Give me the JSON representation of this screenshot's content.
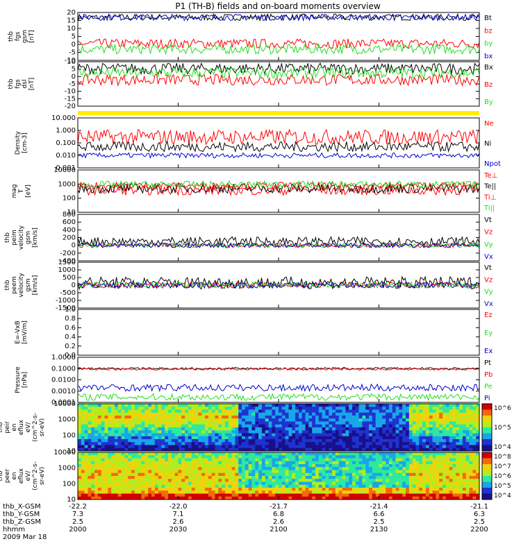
{
  "title": "P1 (TH-B) fields and on-board moments overview",
  "colors": {
    "black": "#000000",
    "red": "#ff0000",
    "green": "#22dd22",
    "blue": "#0000cc",
    "yellow": "#ffee00"
  },
  "chart_data": [
    {
      "type": "line",
      "panel": "fgs",
      "ylabel_lines": [
        "thb",
        "fgs",
        "gsm",
        "[nT]"
      ],
      "yticks": [
        "20",
        "15",
        "10",
        "5",
        "0",
        "-5",
        "-10"
      ],
      "ylim": [
        -10,
        20
      ],
      "series": [
        {
          "name": "Bt",
          "color": "#000000",
          "level": 17,
          "noise": 1.0
        },
        {
          "name": "bz",
          "color": "#ff0000",
          "level": 0.5,
          "noise": 1.5
        },
        {
          "name": "by",
          "color": "#22dd22",
          "level": -3,
          "noise": 1.5
        },
        {
          "name": "bx",
          "color": "#0000cc",
          "level": 17,
          "noise": 1.0
        }
      ]
    },
    {
      "type": "line",
      "panel": "fgs-dsl",
      "ylabel_lines": [
        "thb",
        "fgs",
        "dsl",
        "[nT]"
      ],
      "yticks": [
        "10",
        "5",
        "0",
        "-5",
        "-10",
        "-15",
        "-20"
      ],
      "ylim": [
        -22,
        10
      ],
      "series": [
        {
          "name": "Bx",
          "color": "#000000",
          "level": 5,
          "noise": 2
        },
        {
          "name": "Bz",
          "color": "#ff0000",
          "level": -3,
          "noise": 2
        },
        {
          "name": "By",
          "color": "#22dd22",
          "level": 2,
          "noise": 2
        }
      ]
    },
    {
      "type": "line",
      "panel": "density",
      "log": true,
      "ylabel_lines": [
        "Density",
        "[cm-3]"
      ],
      "yticks": [
        "10.000",
        "1.000",
        "0.100",
        "0.010",
        "0.001"
      ],
      "ylim": [
        0.001,
        10
      ],
      "series": [
        {
          "name": "Ne",
          "color": "#ff0000",
          "level": 0.3,
          "noise": 0.6
        },
        {
          "name": "Ni",
          "color": "#000000",
          "level": 0.05,
          "noise": 0.4
        },
        {
          "name": "Npot",
          "color": "#0000cc",
          "level": 0.01,
          "noise": 0.2
        }
      ]
    },
    {
      "type": "line",
      "panel": "temperature",
      "log": true,
      "ylabel_lines": [
        "mag",
        "T",
        "[eV]"
      ],
      "yticks": [
        "10000",
        "1000",
        "100",
        "10"
      ],
      "ylim": [
        3,
        10000
      ],
      "series": [
        {
          "name": "Te⊥",
          "color": "#ff0000",
          "level": 200,
          "noise": 0.4
        },
        {
          "name": "Te||",
          "color": "#000000",
          "level": 300,
          "noise": 0.4
        },
        {
          "name": "Ti⊥",
          "color": "#ff0000",
          "level": 500,
          "noise": 0.3
        },
        {
          "name": "Ti||",
          "color": "#22dd22",
          "level": 600,
          "noise": 0.3
        }
      ]
    },
    {
      "type": "line",
      "panel": "peim-velocity",
      "ylabel_lines": [
        "thb",
        "peim",
        "velocity",
        "gsm",
        "[km/s]"
      ],
      "yticks": [
        "800",
        "600",
        "400",
        "200",
        "0",
        "-200",
        "-400"
      ],
      "ylim": [
        -400,
        800
      ],
      "series": [
        {
          "name": "Vt",
          "color": "#000000",
          "level": 100,
          "noise": 60
        },
        {
          "name": "Vz",
          "color": "#ff0000",
          "level": 0,
          "noise": 30
        },
        {
          "name": "Vy",
          "color": "#22dd22",
          "level": 0,
          "noise": 30
        },
        {
          "name": "Vx",
          "color": "#0000cc",
          "level": 0,
          "noise": 30
        }
      ]
    },
    {
      "type": "line",
      "panel": "peem-velocity",
      "ylabel_lines": [
        "thb",
        "peem",
        "velocity",
        "gsm",
        "[km/s]"
      ],
      "yticks": [
        "1500",
        "1000",
        "500",
        "0",
        "-500",
        "-1000",
        "-1500"
      ],
      "ylim": [
        -1500,
        1500
      ],
      "series": [
        {
          "name": "Vt",
          "color": "#000000",
          "level": 150,
          "noise": 200
        },
        {
          "name": "Vz",
          "color": "#ff0000",
          "level": 0,
          "noise": 100
        },
        {
          "name": "Vy",
          "color": "#22dd22",
          "level": 0,
          "noise": 100
        },
        {
          "name": "Vx",
          "color": "#0000cc",
          "level": 0,
          "noise": 100
        }
      ]
    },
    {
      "type": "line",
      "panel": "efield",
      "ylabel_lines": [
        "E=-VxB",
        "[mV/m]"
      ],
      "yticks": [
        "1.0",
        "0.8",
        "0.6",
        "0.4",
        "0.2",
        "0.0"
      ],
      "ylim": [
        0,
        1
      ],
      "series": [
        {
          "name": "Ez",
          "color": "#ff0000"
        },
        {
          "name": "Ey",
          "color": "#22dd22"
        },
        {
          "name": "Ex",
          "color": "#0000cc"
        }
      ]
    },
    {
      "type": "line",
      "panel": "pressure",
      "log": true,
      "ylabel_lines": [
        "Pressure",
        "[nPa]"
      ],
      "yticks": [
        "1.0000",
        "0.1000",
        "0.0100",
        "0.0010",
        "0.0001"
      ],
      "ylim": [
        0.0001,
        1
      ],
      "series": [
        {
          "name": "Pt",
          "color": "#000000",
          "level": 0.1,
          "noise": 0.1
        },
        {
          "name": "Pb",
          "color": "#ff0000",
          "level": 0.09,
          "noise": 0.1
        },
        {
          "name": "Pe",
          "color": "#22dd22",
          "level": 0.0003,
          "noise": 0.3
        },
        {
          "name": "Pi",
          "color": "#0000cc",
          "level": 0.002,
          "noise": 0.3
        }
      ]
    },
    {
      "type": "heatmap",
      "panel": "peir",
      "ylabel_lines": [
        "thb",
        "peir",
        "en",
        "eflux",
        "eV/",
        "(cm^2-s-",
        "sr-eV)"
      ],
      "yticks": [
        "10000",
        "1000",
        "100",
        "10"
      ],
      "colorbar_ticks": [
        "10^6",
        "10^5",
        "10^4"
      ]
    },
    {
      "type": "heatmap",
      "panel": "peer",
      "ylabel_lines": [
        "thb",
        "peer",
        "en",
        "eflux",
        "eV/",
        "(cm^2-s-",
        "sr-eV)"
      ],
      "yticks": [
        "10000",
        "1000",
        "100",
        "10"
      ],
      "colorbar_ticks": [
        "10^8",
        "10^7",
        "10^6",
        "10^5",
        "10^4"
      ]
    }
  ],
  "xaxis": {
    "row_labels": [
      "thb_X-GSM",
      "thb_Y-GSM",
      "thb_Z-GSM",
      "hhmm",
      "2009 Mar 18"
    ],
    "columns": [
      {
        "x": "-22.2",
        "y": "7.3",
        "z": "2.5",
        "t": "2000"
      },
      {
        "x": "-22.0",
        "y": "7.1",
        "z": "2.6",
        "t": "2030"
      },
      {
        "x": "-21.7",
        "y": "6.8",
        "z": "2.6",
        "t": "2100"
      },
      {
        "x": "-21.4",
        "y": "6.6",
        "z": "2.5",
        "t": "2130"
      },
      {
        "x": "-21.1",
        "y": "6.3",
        "z": "2.5",
        "t": "2200"
      }
    ]
  }
}
